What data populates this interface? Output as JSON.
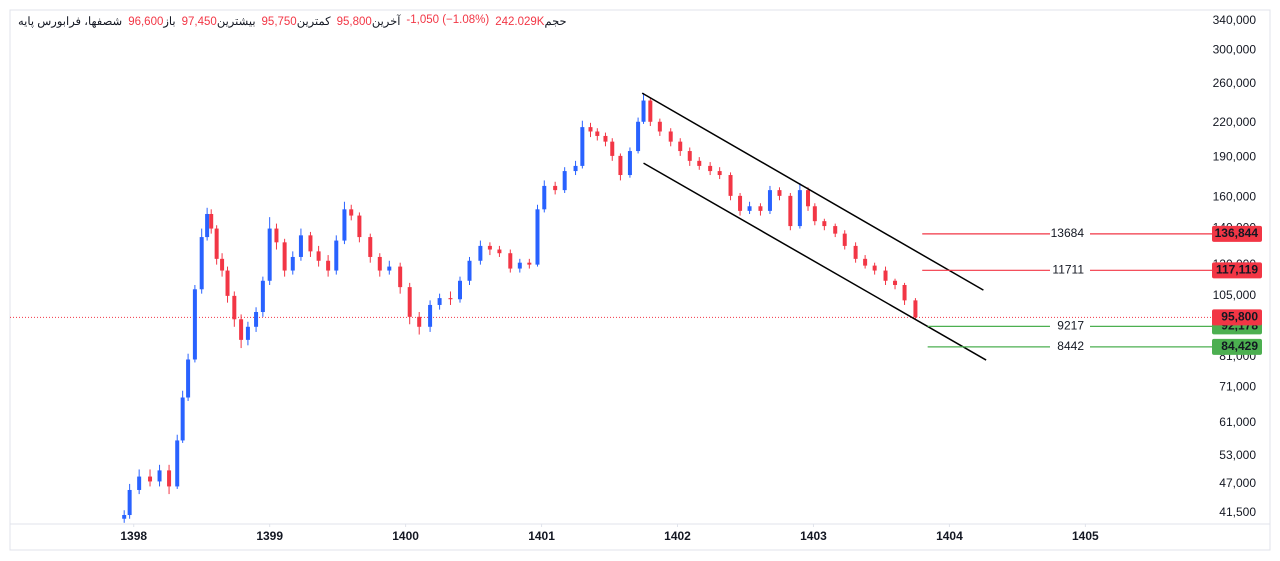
{
  "chart_data": {
    "type": "candlestick",
    "legend": {
      "symbol": "شصفها، فرابورس پایه",
      "items": [
        {
          "label": "باز",
          "value": "96,600"
        },
        {
          "label": "بیشترین",
          "value": "97,450"
        },
        {
          "label": "کمترین",
          "value": "95,750"
        },
        {
          "label": "آخرین",
          "value": "95,800"
        },
        {
          "value": "-1,050 (−1.08%)"
        },
        {
          "label": "حجم",
          "value": "242.029K"
        }
      ]
    },
    "x": [
      1397.93,
      1397.97,
      1398.04,
      1398.12,
      1398.19,
      1398.26,
      1398.32,
      1398.36,
      1398.4,
      1398.45,
      1398.5,
      1398.54,
      1398.57,
      1398.61,
      1398.65,
      1398.69,
      1398.74,
      1398.79,
      1398.84,
      1398.9,
      1398.95,
      1399.0,
      1399.05,
      1399.11,
      1399.17,
      1399.23,
      1399.3,
      1399.36,
      1399.43,
      1399.49,
      1399.55,
      1399.6,
      1399.66,
      1399.74,
      1399.81,
      1399.88,
      1399.96,
      1400.03,
      1400.1,
      1400.18,
      1400.25,
      1400.33,
      1400.4,
      1400.47,
      1400.55,
      1400.62,
      1400.69,
      1400.77,
      1400.84,
      1400.91,
      1400.97,
      1401.02,
      1401.1,
      1401.17,
      1401.25,
      1401.3,
      1401.36,
      1401.41,
      1401.47,
      1401.52,
      1401.58,
      1401.65,
      1401.71,
      1401.75,
      1401.8,
      1401.87,
      1401.95,
      1402.02,
      1402.09,
      1402.16,
      1402.24,
      1402.31,
      1402.39,
      1402.46,
      1402.53,
      1402.61,
      1402.68,
      1402.75,
      1402.83,
      1402.9,
      1402.96,
      1403.01,
      1403.08,
      1403.16,
      1403.23,
      1403.31,
      1403.38,
      1403.45,
      1403.53,
      1403.6,
      1403.67,
      1403.75
    ],
    "open": [
      40500,
      41150,
      45800,
      48500,
      47500,
      49800,
      46500,
      56600,
      68000,
      80000,
      108000,
      135000,
      149000,
      140000,
      123000,
      117000,
      105000,
      95000,
      87000,
      92000,
      98000,
      112000,
      140000,
      132000,
      117000,
      124000,
      136000,
      127000,
      122000,
      117000,
      133000,
      152000,
      148000,
      135000,
      124000,
      117000,
      119000,
      109000,
      96000,
      92000,
      101000,
      104000,
      103500,
      112000,
      122000,
      130000,
      128000,
      126000,
      118000,
      121000,
      120000,
      152000,
      168000,
      165000,
      179000,
      183000,
      216000,
      212000,
      208000,
      203000,
      191000,
      176000,
      195000,
      221000,
      242000,
      221000,
      212000,
      203000,
      195000,
      187000,
      183000,
      179000,
      176000,
      161000,
      151000,
      154000,
      151000,
      165000,
      161000,
      141500,
      165000,
      154000,
      144500,
      141500,
      137000,
      130000,
      123000,
      119500,
      117000,
      112000,
      110000,
      103000
    ],
    "high": [
      42000,
      47000,
      50000,
      50000,
      51000,
      51000,
      58000,
      70000,
      82000,
      110000,
      140000,
      153000,
      152000,
      142000,
      126000,
      119000,
      107000,
      97000,
      94000,
      100000,
      114000,
      147000,
      143000,
      134000,
      127000,
      140000,
      138000,
      130000,
      125000,
      136000,
      157000,
      155000,
      150000,
      137000,
      126000,
      122000,
      121000,
      111000,
      98000,
      103000,
      106000,
      107000,
      114000,
      124000,
      133000,
      132000,
      130000,
      128000,
      123000,
      123000,
      155000,
      172000,
      171000,
      182000,
      187000,
      222000,
      220000,
      215000,
      211000,
      206000,
      193000,
      198000,
      225000,
      250000,
      245000,
      224000,
      215000,
      206000,
      198000,
      190000,
      186000,
      182000,
      178000,
      163000,
      157000,
      156000,
      168000,
      167000,
      163000,
      170000,
      167000,
      156000,
      146000,
      143000,
      139000,
      132000,
      125000,
      121000,
      119000,
      113000,
      111000,
      104000
    ],
    "low": [
      39800,
      40500,
      45000,
      46500,
      46500,
      45000,
      46000,
      56000,
      67000,
      79000,
      106000,
      133000,
      137000,
      120000,
      114000,
      102000,
      92000,
      84000,
      85000,
      90000,
      96000,
      110000,
      128000,
      114000,
      115000,
      122000,
      124000,
      119000,
      114000,
      115000,
      131000,
      145000,
      132000,
      121000,
      114000,
      115000,
      106000,
      93000,
      89000,
      90000,
      99000,
      101000,
      102000,
      110000,
      120000,
      125000,
      124000,
      116000,
      116000,
      118000,
      119000,
      150000,
      162000,
      163000,
      176000,
      181000,
      207000,
      204000,
      199000,
      187000,
      172000,
      174000,
      193000,
      219000,
      217000,
      208000,
      199000,
      191000,
      183000,
      180000,
      176000,
      173000,
      158000,
      148000,
      149000,
      148000,
      149000,
      158000,
      139000,
      140000,
      151000,
      142000,
      139000,
      135000,
      128000,
      121000,
      118000,
      115000,
      110000,
      108000,
      101000,
      95000
    ],
    "close": [
      41150,
      45800,
      48500,
      47500,
      49800,
      46500,
      56600,
      68000,
      80000,
      108000,
      135000,
      149000,
      140000,
      123000,
      117000,
      105000,
      95000,
      87000,
      92000,
      98000,
      112000,
      140000,
      132000,
      117000,
      124000,
      136000,
      127000,
      122000,
      117000,
      133000,
      152000,
      148000,
      135000,
      124000,
      117000,
      119000,
      109000,
      96000,
      92000,
      101000,
      104000,
      103500,
      112000,
      122000,
      130000,
      128000,
      126000,
      118000,
      121000,
      120000,
      152000,
      168000,
      165000,
      179000,
      183000,
      216000,
      212000,
      208000,
      203000,
      191000,
      176000,
      195000,
      221000,
      242000,
      221000,
      212000,
      203000,
      195000,
      187000,
      183000,
      179000,
      176000,
      161000,
      151000,
      154000,
      151000,
      165000,
      161000,
      141500,
      165000,
      154000,
      144500,
      141500,
      137000,
      130000,
      123000,
      119500,
      117000,
      112000,
      110000,
      103000,
      95800
    ],
    "up_color": "#2962ff",
    "down_color": "#f23645",
    "xlim": [
      1397.09,
      1405.88
    ],
    "xticks": [
      1398,
      1399,
      1400,
      1401,
      1402,
      1403,
      1404,
      1405
    ],
    "ylim": [
      39600,
      359400
    ],
    "log_scale": true,
    "yticks": [
      {
        "value": 41500,
        "label": "41,500"
      },
      {
        "value": 47000,
        "label": "47,000"
      },
      {
        "value": 53000,
        "label": "53,000"
      },
      {
        "value": 61000,
        "label": "61,000"
      },
      {
        "value": 71000,
        "label": "71,000"
      },
      {
        "value": 81000,
        "label": "81,000"
      },
      {
        "value": 105000,
        "label": "105,000"
      },
      {
        "value": 120000,
        "label": "120,000"
      },
      {
        "value": 140000,
        "label": "140,000"
      },
      {
        "value": 160000,
        "label": "160,000"
      },
      {
        "value": 190000,
        "label": "190,000"
      },
      {
        "value": 220000,
        "label": "220,000"
      },
      {
        "value": 260000,
        "label": "260,000"
      },
      {
        "value": 300000,
        "label": "300,000"
      },
      {
        "value": 340000,
        "label": "340,000"
      }
    ],
    "last_price": {
      "value": 95800,
      "label": "95,800",
      "color": "#f23645"
    },
    "levels": [
      {
        "value": 136844,
        "value_label": "136,844",
        "label": "13684",
        "color": "#f23645",
        "x_start": 1403.8
      },
      {
        "value": 117119,
        "value_label": "117,119",
        "label": "11711",
        "color": "#f23645",
        "x_start": 1403.8
      },
      {
        "value": 92178,
        "value_label": "92,178",
        "label": "9217",
        "color": "#4caf50",
        "x_start": 1403.84
      },
      {
        "value": 84429,
        "value_label": "84,429",
        "label": "8442",
        "color": "#4caf50",
        "x_start": 1403.84
      }
    ],
    "trendlines": [
      {
        "x": [
          1401.74,
          1404.25
        ],
        "y": [
          249800,
          107600
        ],
        "color": "#000000"
      },
      {
        "x": [
          1401.75,
          1404.27
        ],
        "y": [
          185200,
          79800
        ],
        "color": "#000000"
      }
    ]
  }
}
